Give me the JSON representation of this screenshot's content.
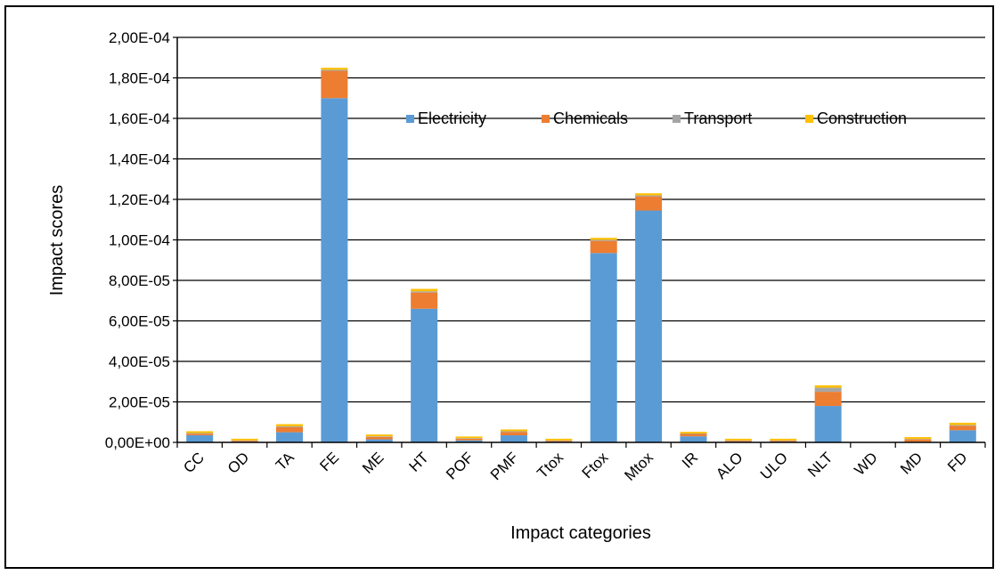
{
  "chart_data": {
    "type": "bar",
    "stacked": true,
    "categories": [
      "CC",
      "OD",
      "TA",
      "FE",
      "ME",
      "HT",
      "POF",
      "PMF",
      "Ttox",
      "Ftox",
      "Mtox",
      "IR",
      "ALO",
      "ULO",
      "NLT",
      "WD",
      "MD",
      "FD"
    ],
    "series": [
      {
        "name": "Electricity",
        "color": "#5b9bd5",
        "values": [
          3.5e-06,
          3e-07,
          5e-06,
          0.00017,
          1.5e-06,
          6.6e-05,
          1e-06,
          3.5e-06,
          3e-07,
          9.35e-05,
          0.0001145,
          3e-06,
          3e-07,
          3e-07,
          1.8e-05,
          0.0,
          3e-07,
          6e-06
        ]
      },
      {
        "name": "Chemicals",
        "color": "#ed7d31",
        "values": [
          8e-07,
          5e-07,
          2.5e-06,
          1.35e-05,
          1.2e-06,
          8e-06,
          8e-07,
          1.6e-06,
          5e-07,
          6e-06,
          7e-06,
          1.2e-06,
          5e-07,
          5e-07,
          7e-06,
          0.0,
          1.2e-06,
          2.2e-06
        ]
      },
      {
        "name": "Transport",
        "color": "#a5a5a5",
        "values": [
          3e-07,
          2e-07,
          4e-07,
          5e-07,
          3e-07,
          6e-07,
          3e-07,
          4e-07,
          2e-07,
          5e-07,
          5e-07,
          2e-07,
          2e-07,
          2e-07,
          2e-06,
          0.0,
          2e-07,
          4e-07
        ]
      },
      {
        "name": "Construction",
        "color": "#ffc000",
        "values": [
          9e-07,
          8e-07,
          1.1e-06,
          1e-06,
          9e-07,
          1.2e-06,
          8e-07,
          9e-07,
          8e-07,
          1e-06,
          1e-06,
          8e-07,
          8e-07,
          8e-07,
          1.2e-06,
          0.0,
          9e-07,
          1.1e-06
        ]
      }
    ],
    "xlabel": "Impact categories",
    "ylabel": "Impact scores",
    "ylim": [
      0,
      0.0002
    ],
    "yticks": [
      {
        "value": 0,
        "label": "0,00E+00"
      },
      {
        "value": 2e-05,
        "label": "2,00E-05"
      },
      {
        "value": 4e-05,
        "label": "4,00E-05"
      },
      {
        "value": 6e-05,
        "label": "6,00E-05"
      },
      {
        "value": 8e-05,
        "label": "8,00E-05"
      },
      {
        "value": 0.0001,
        "label": "1,00E-04"
      },
      {
        "value": 0.00012,
        "label": "1,20E-04"
      },
      {
        "value": 0.00014,
        "label": "1,40E-04"
      },
      {
        "value": 0.00016,
        "label": "1,60E-04"
      },
      {
        "value": 0.00018,
        "label": "1,80E-04"
      },
      {
        "value": 0.0002,
        "label": "2,00E-04"
      }
    ],
    "grid": true,
    "legend_position": "top-right"
  }
}
